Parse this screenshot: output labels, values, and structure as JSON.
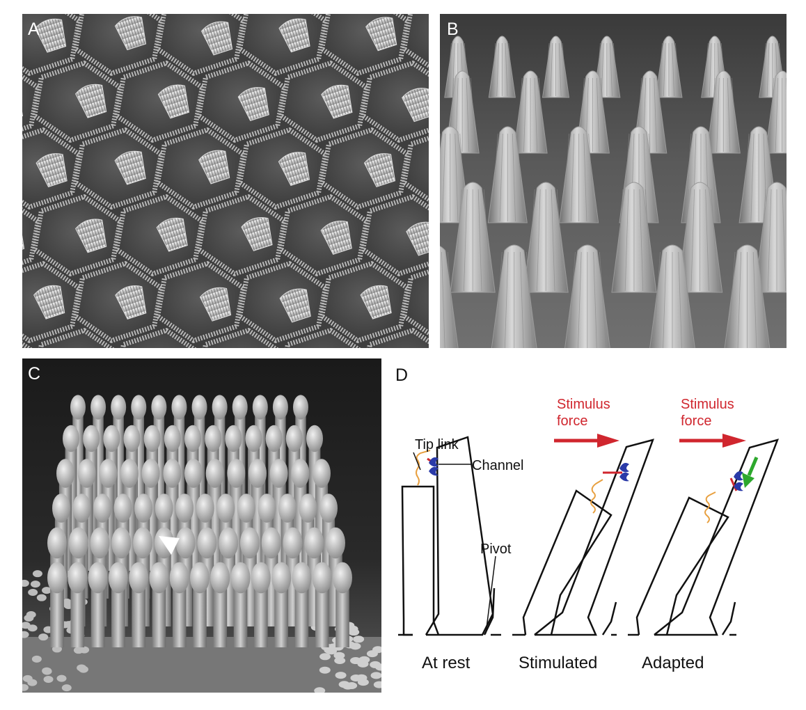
{
  "panels": {
    "a": {
      "label": "A"
    },
    "b": {
      "label": "B"
    },
    "c": {
      "label": "C"
    },
    "d": {
      "label": "D",
      "tip_link": "Tip link",
      "channel": "Channel",
      "pivot": "Pivot",
      "stim_1_line1": "Stimulus",
      "stim_1_line2": "force",
      "stim_2_line1": "Stimulus",
      "stim_2_line2": "force",
      "state_rest": "At rest",
      "state_stimulated": "Stimulated",
      "state_adapted": "Adapted"
    }
  },
  "colors": {
    "stimulus": "#d0262e",
    "channel": "#2a3aa8",
    "tip_link": "#e8a040",
    "adaptation_arrow": "#2da82d",
    "outline": "#111111"
  }
}
